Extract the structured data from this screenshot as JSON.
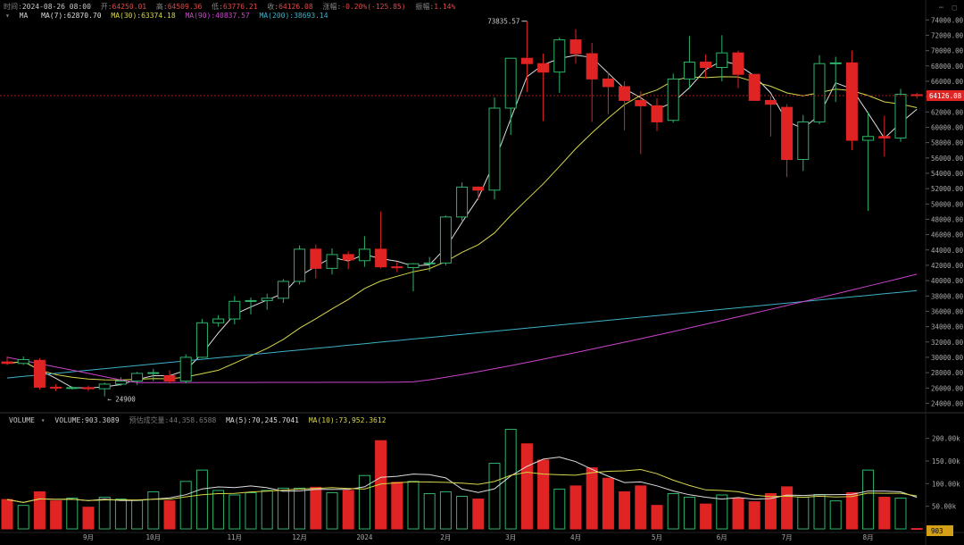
{
  "header": {
    "time_label": "时间:",
    "time_value": "2024-08-26 08:00",
    "open_label": "开:",
    "open_value": "64250.01",
    "high_label": "高:",
    "high_value": "64509.36",
    "low_label": "低:",
    "low_value": "63776.21",
    "close_label": "收:",
    "close_value": "64126.08",
    "change_label": "涨幅:",
    "change_value": "-0.20%(-125.85)",
    "amp_label": "振幅:",
    "amp_value": "1.14%"
  },
  "ma_legend": {
    "name": "MA",
    "ma7": "MA(7):62870.70",
    "ma30": "MA(30):63374.18",
    "ma90": "MA(90):40837.57",
    "ma200": "MA(200):38693.14"
  },
  "volume_legend": {
    "name": "VOLUME",
    "volume": "VOLUME:903.3089",
    "turnover": "预估成交量:44,358.6588",
    "ma5": "MA(5):70,245.7041",
    "ma10": "MA(10):73,952.3612"
  },
  "price_tag": "64126.08",
  "volume_tag": "903",
  "annotations": {
    "high": "73835.57",
    "low": "24900"
  },
  "colors": {
    "up": "#2fb36b",
    "down": "#e02424",
    "ma7": "#dddddd",
    "ma30": "#d6d64a",
    "ma90": "#cc44cc",
    "ma200": "#3fb0c8",
    "vma5": "#dddddd",
    "vma10": "#d6d64a"
  },
  "chart_data": {
    "type": "candlestick",
    "interval_note": "weekly candles",
    "price_axis": {
      "ylim": [
        23000,
        74500
      ],
      "ticks": [
        "74000.00",
        "72000.00",
        "70000.00",
        "68000.00",
        "66000.00",
        "64000.00",
        "62000.00",
        "60000.00",
        "58000.00",
        "56000.00",
        "54000.00",
        "52000.00",
        "50000.00",
        "48000.00",
        "46000.00",
        "44000.00",
        "42000.00",
        "40000.00",
        "38000.00",
        "36000.00",
        "34000.00",
        "32000.00",
        "30000.00",
        "28000.00",
        "26000.00",
        "24000.00"
      ]
    },
    "volume_axis": {
      "ylim": [
        0,
        225000
      ],
      "ticks": [
        200000,
        150000,
        100000,
        50000
      ],
      "tick_labels": [
        "200.00k",
        "150.00k",
        "100.00k",
        "50.00k"
      ]
    },
    "x_labels": [
      {
        "index": 5,
        "label": "9月"
      },
      {
        "index": 9,
        "label": "10月"
      },
      {
        "index": 14,
        "label": "11月"
      },
      {
        "index": 18,
        "label": "12月"
      },
      {
        "index": 22,
        "label": "2024"
      },
      {
        "index": 27,
        "label": "2月"
      },
      {
        "index": 31,
        "label": "3月"
      },
      {
        "index": 35,
        "label": "4月"
      },
      {
        "index": 40,
        "label": "5月"
      },
      {
        "index": 44,
        "label": "6月"
      },
      {
        "index": 48,
        "label": "7月"
      },
      {
        "index": 53,
        "label": "8月"
      }
    ],
    "candles": [
      {
        "o": 29400,
        "h": 30100,
        "l": 29000,
        "c": 29200,
        "v": 65000
      },
      {
        "o": 29200,
        "h": 30100,
        "l": 29000,
        "c": 29700,
        "v": 52000
      },
      {
        "o": 29600,
        "h": 29900,
        "l": 25800,
        "c": 26100,
        "v": 82000
      },
      {
        "o": 26100,
        "h": 26500,
        "l": 25600,
        "c": 26000,
        "v": 62000
      },
      {
        "o": 26000,
        "h": 26200,
        "l": 25800,
        "c": 26050,
        "v": 68000
      },
      {
        "o": 26050,
        "h": 26300,
        "l": 25600,
        "c": 25900,
        "v": 48000
      },
      {
        "o": 25900,
        "h": 26700,
        "l": 24900,
        "c": 26500,
        "v": 70000
      },
      {
        "o": 26500,
        "h": 27400,
        "l": 26300,
        "c": 26900,
        "v": 66000
      },
      {
        "o": 26900,
        "h": 28100,
        "l": 26400,
        "c": 27900,
        "v": 63000
      },
      {
        "o": 27900,
        "h": 28500,
        "l": 26900,
        "c": 28000,
        "v": 82000
      },
      {
        "o": 27600,
        "h": 28300,
        "l": 26600,
        "c": 26900,
        "v": 62000
      },
      {
        "o": 26900,
        "h": 30400,
        "l": 26600,
        "c": 30000,
        "v": 105000
      },
      {
        "o": 30000,
        "h": 35000,
        "l": 29900,
        "c": 34500,
        "v": 130000
      },
      {
        "o": 34500,
        "h": 35500,
        "l": 34000,
        "c": 35000,
        "v": 85000
      },
      {
        "o": 35000,
        "h": 38000,
        "l": 34300,
        "c": 37300,
        "v": 75000
      },
      {
        "o": 37300,
        "h": 37800,
        "l": 35600,
        "c": 37400,
        "v": 80000
      },
      {
        "o": 37400,
        "h": 38300,
        "l": 36200,
        "c": 37700,
        "v": 85000
      },
      {
        "o": 37700,
        "h": 40200,
        "l": 37100,
        "c": 39900,
        "v": 90000
      },
      {
        "o": 39900,
        "h": 44600,
        "l": 39500,
        "c": 44100,
        "v": 90000
      },
      {
        "o": 44100,
        "h": 44700,
        "l": 40300,
        "c": 41600,
        "v": 92000
      },
      {
        "o": 41600,
        "h": 44200,
        "l": 40800,
        "c": 43400,
        "v": 80000
      },
      {
        "o": 43400,
        "h": 43800,
        "l": 41500,
        "c": 42700,
        "v": 85000
      },
      {
        "o": 42600,
        "h": 45800,
        "l": 41800,
        "c": 44100,
        "v": 118000
      },
      {
        "o": 44100,
        "h": 49000,
        "l": 41600,
        "c": 41800,
        "v": 195000
      },
      {
        "o": 41800,
        "h": 42400,
        "l": 41100,
        "c": 41700,
        "v": 103000
      },
      {
        "o": 41700,
        "h": 42300,
        "l": 38600,
        "c": 42200,
        "v": 105000
      },
      {
        "o": 42200,
        "h": 43100,
        "l": 41200,
        "c": 42300,
        "v": 78000
      },
      {
        "o": 42300,
        "h": 48500,
        "l": 42000,
        "c": 48300,
        "v": 82000
      },
      {
        "o": 48300,
        "h": 52800,
        "l": 47800,
        "c": 52200,
        "v": 72000
      },
      {
        "o": 52200,
        "h": 52300,
        "l": 50500,
        "c": 51800,
        "v": 66000
      },
      {
        "o": 51800,
        "h": 63900,
        "l": 50600,
        "c": 62500,
        "v": 145000
      },
      {
        "o": 62500,
        "h": 69000,
        "l": 59000,
        "c": 69000,
        "v": 220000
      },
      {
        "o": 69000,
        "h": 73835.57,
        "l": 64600,
        "c": 68300,
        "v": 188000
      },
      {
        "o": 68300,
        "h": 69600,
        "l": 60800,
        "c": 67200,
        "v": 152000
      },
      {
        "o": 67200,
        "h": 71700,
        "l": 64500,
        "c": 71400,
        "v": 88000
      },
      {
        "o": 71400,
        "h": 72800,
        "l": 68300,
        "c": 69600,
        "v": 95000
      },
      {
        "o": 69600,
        "h": 71000,
        "l": 60700,
        "c": 66300,
        "v": 135000
      },
      {
        "o": 66300,
        "h": 67200,
        "l": 61700,
        "c": 65300,
        "v": 112000
      },
      {
        "o": 65300,
        "h": 66000,
        "l": 59600,
        "c": 63500,
        "v": 82000
      },
      {
        "o": 63500,
        "h": 64700,
        "l": 56500,
        "c": 62800,
        "v": 95000
      },
      {
        "o": 62800,
        "h": 63800,
        "l": 59500,
        "c": 60700,
        "v": 52000
      },
      {
        "o": 60900,
        "h": 67000,
        "l": 60600,
        "c": 66300,
        "v": 78000
      },
      {
        "o": 66300,
        "h": 71900,
        "l": 65000,
        "c": 68500,
        "v": 70000
      },
      {
        "o": 68500,
        "h": 69500,
        "l": 66400,
        "c": 67800,
        "v": 55000
      },
      {
        "o": 67800,
        "h": 72000,
        "l": 66000,
        "c": 69700,
        "v": 75000
      },
      {
        "o": 69700,
        "h": 70000,
        "l": 65100,
        "c": 66900,
        "v": 68000
      },
      {
        "o": 66900,
        "h": 66900,
        "l": 63500,
        "c": 63500,
        "v": 60000
      },
      {
        "o": 63500,
        "h": 64100,
        "l": 58800,
        "c": 63000,
        "v": 78000
      },
      {
        "o": 62600,
        "h": 63000,
        "l": 53500,
        "c": 55800,
        "v": 93000
      },
      {
        "o": 55800,
        "h": 61600,
        "l": 54300,
        "c": 60700,
        "v": 70000
      },
      {
        "o": 60700,
        "h": 69400,
        "l": 60400,
        "c": 68300,
        "v": 76000
      },
      {
        "o": 68300,
        "h": 69200,
        "l": 63300,
        "c": 68400,
        "v": 62000
      },
      {
        "o": 68400,
        "h": 70000,
        "l": 57000,
        "c": 58300,
        "v": 80000
      },
      {
        "o": 58300,
        "h": 62000,
        "l": 49100,
        "c": 58800,
        "v": 130000
      },
      {
        "o": 58800,
        "h": 61500,
        "l": 56200,
        "c": 58600,
        "v": 70000
      },
      {
        "o": 58600,
        "h": 65000,
        "l": 58100,
        "c": 64300,
        "v": 68000
      },
      {
        "o": 64250.01,
        "h": 64509.36,
        "l": 63776.21,
        "c": 64126.08,
        "v": 903
      }
    ]
  }
}
